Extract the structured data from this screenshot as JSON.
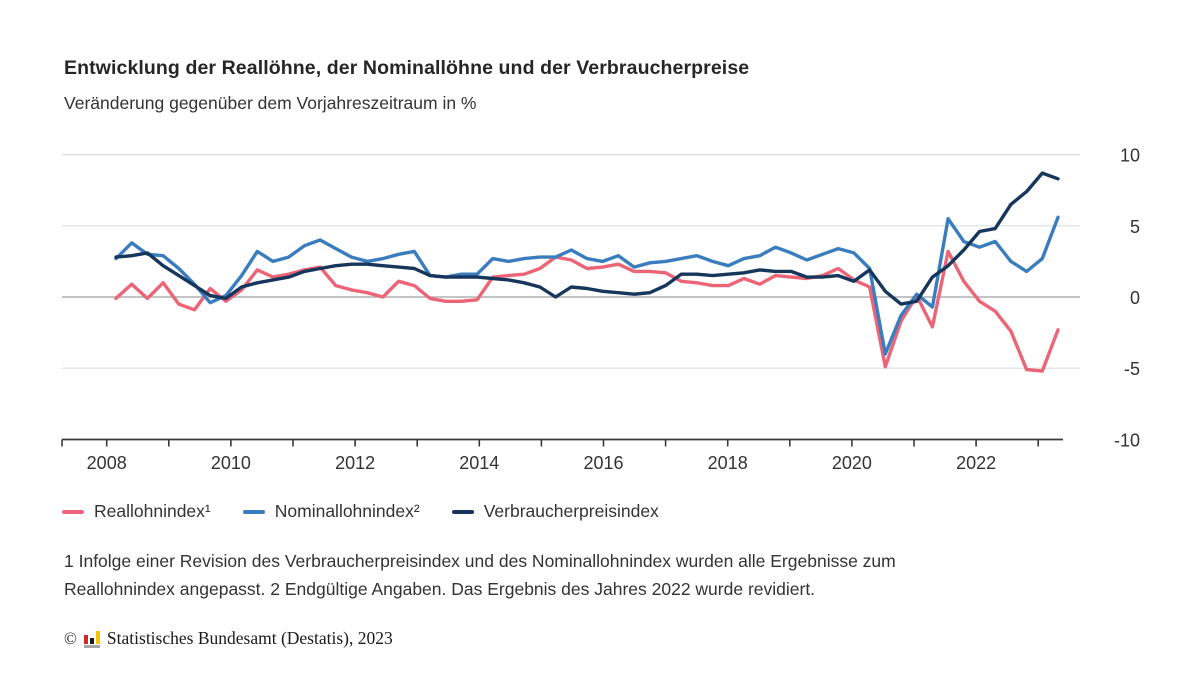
{
  "header": {
    "title": "Entwicklung der Reallöhne, der Nominallöhne und der Verbraucherpreise",
    "subtitle": "Veränderung gegenüber dem Vorjahreszeitraum in %"
  },
  "chart_data": {
    "type": "line",
    "title": "Entwicklung der Reallöhne, der Nominallöhne und der Verbraucherpreise",
    "subtitle": "Veränderung gegenüber dem Vorjahreszeitraum in %",
    "frequency": "quarterly",
    "x_start": "2008-Q1",
    "x_end": "2023-Q1",
    "x_start_year": 2008,
    "x_tick_years": [
      2008,
      2010,
      2012,
      2014,
      2016,
      2018,
      2020,
      2022
    ],
    "x_minor_tick_years": [
      2008,
      2009,
      2010,
      2011,
      2012,
      2013,
      2014,
      2015,
      2016,
      2017,
      2018,
      2019,
      2020,
      2021,
      2022,
      2023
    ],
    "y_ticks": [
      10,
      5,
      0,
      -5,
      -10
    ],
    "ylim": [
      -10,
      10
    ],
    "grid": "horizontal",
    "legend_position": "bottom",
    "colors": {
      "gridline": "#dedede",
      "zero_line": "#b0b0b0",
      "axis": "#3a3a3a",
      "tick_label": "#333333"
    },
    "series": [
      {
        "id": "reallohnindex",
        "name": "Reallohnindex¹",
        "color": "#ec6577",
        "values": [
          -0.1,
          0.9,
          -0.1,
          1.0,
          -0.5,
          -0.9,
          0.6,
          -0.3,
          0.5,
          1.9,
          1.4,
          1.6,
          1.9,
          2.1,
          0.8,
          0.5,
          0.3,
          0.0,
          1.1,
          0.8,
          -0.1,
          -0.3,
          -0.3,
          -0.2,
          1.4,
          1.5,
          1.6,
          2.0,
          2.8,
          2.6,
          2.0,
          2.1,
          2.3,
          1.8,
          1.8,
          1.7,
          1.1,
          1.0,
          0.8,
          0.8,
          1.3,
          0.9,
          1.5,
          1.4,
          1.3,
          1.5,
          2.0,
          1.2,
          0.7,
          -4.9,
          -1.7,
          0.1,
          -2.1,
          3.2,
          1.1,
          -0.3,
          -1.0,
          -2.4,
          -5.1,
          -5.2,
          -2.3
        ]
      },
      {
        "id": "nominallohnindex",
        "name": "Nominallohnindex²",
        "color": "#3a7dbf",
        "values": [
          2.7,
          3.8,
          3.0,
          2.9,
          2.0,
          0.9,
          -0.4,
          0.1,
          1.5,
          3.2,
          2.5,
          2.8,
          3.6,
          4.0,
          3.4,
          2.8,
          2.5,
          2.7,
          3.0,
          3.2,
          1.5,
          1.4,
          1.6,
          1.6,
          2.7,
          2.5,
          2.7,
          2.8,
          2.8,
          3.3,
          2.7,
          2.5,
          2.9,
          2.1,
          2.4,
          2.5,
          2.7,
          2.9,
          2.5,
          2.2,
          2.7,
          2.9,
          3.5,
          3.1,
          2.6,
          3.0,
          3.4,
          3.1,
          2.0,
          -4.0,
          -1.3,
          0.2,
          -0.7,
          5.5,
          3.9,
          3.5,
          3.9,
          2.5,
          1.8,
          2.7,
          5.6
        ]
      },
      {
        "id": "verbraucherpreisindex",
        "name": "Verbraucherpreisindex",
        "color": "#17365c",
        "values": [
          2.8,
          2.9,
          3.1,
          2.2,
          1.5,
          0.8,
          0.1,
          -0.1,
          0.7,
          1.0,
          1.2,
          1.4,
          1.8,
          2.0,
          2.2,
          2.3,
          2.3,
          2.2,
          2.1,
          2.0,
          1.5,
          1.4,
          1.4,
          1.4,
          1.3,
          1.2,
          1.0,
          0.7,
          0.0,
          0.7,
          0.6,
          0.4,
          0.3,
          0.2,
          0.3,
          0.8,
          1.6,
          1.6,
          1.5,
          1.6,
          1.7,
          1.9,
          1.8,
          1.8,
          1.4,
          1.4,
          1.5,
          1.1,
          1.9,
          0.4,
          -0.5,
          -0.3,
          1.4,
          2.2,
          3.3,
          4.6,
          4.8,
          6.5,
          7.4,
          8.7,
          8.3
        ]
      }
    ]
  },
  "footnotes": {
    "lines": [
      "1 Infolge einer Revision des Verbraucherpreisindex und des Nominallohnindex wurden alle Ergebnisse zum",
      "Reallohnindex angepasst. 2 Endgültige Angaben. Das Ergebnis des Jahres 2022 wurde revidiert."
    ]
  },
  "footer": {
    "copyright_symbol": "©",
    "publisher": "Statistisches Bundesamt (Destatis), 2023",
    "logo": "destatis-bar-chart-logo",
    "logo_colors": {
      "red": "#d2262e",
      "black": "#1a1a1a",
      "gold": "#f5c400",
      "base": "#a6a6a6"
    }
  }
}
